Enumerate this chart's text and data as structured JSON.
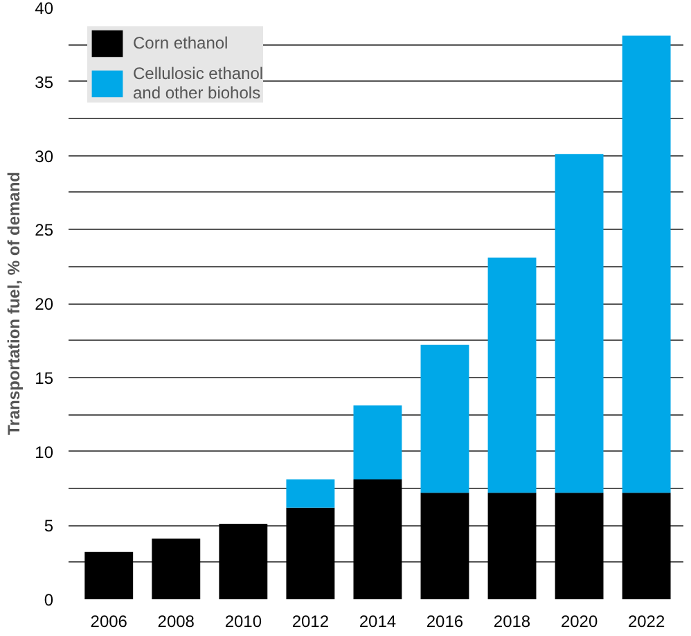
{
  "chart_data": {
    "type": "bar",
    "stacked": true,
    "ylabel": "Transportation fuel, % of demand",
    "categories": [
      "2006",
      "2008",
      "2010",
      "2012",
      "2014",
      "2016",
      "2018",
      "2020",
      "2022"
    ],
    "series": [
      {
        "name": "Corn ethanol",
        "color": "#000000",
        "values": [
          3.2,
          4.1,
          5.1,
          6.2,
          8.1,
          7.2,
          7.2,
          7.2,
          7.2
        ]
      },
      {
        "name": "Cellulosic ethanol\nand other biohols",
        "color": "#00a8e8",
        "values": [
          null,
          null,
          null,
          1.9,
          5.0,
          10.0,
          15.9,
          22.9,
          30.9
        ]
      }
    ],
    "ylim": [
      0,
      40
    ],
    "yticks": [
      0,
      {
        "value": 2.5,
        "label": null
      },
      5,
      {
        "value": 7.5,
        "label": null
      },
      10,
      {
        "value": 12.5,
        "label": null
      },
      15,
      {
        "value": 17.5,
        "label": null
      },
      20,
      {
        "value": 22.5,
        "label": null
      },
      25,
      {
        "value": 27.5,
        "label": null
      },
      30,
      {
        "value": 32.5,
        "label": null
      },
      35,
      {
        "value": 37.5,
        "label": null
      },
      40
    ],
    "grid": "y",
    "legend": "top left"
  }
}
